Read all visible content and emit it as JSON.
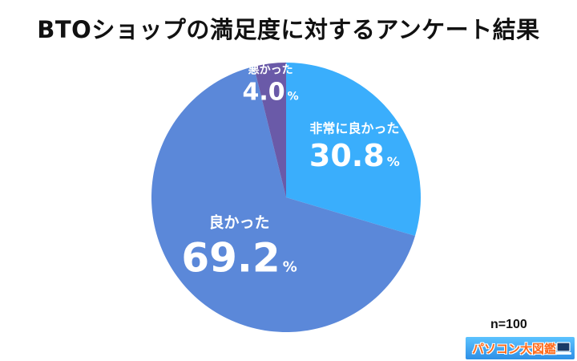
{
  "title": "BTOショップの満足度に対するアンケート結果",
  "sample_size": "n=100",
  "logo_text": "パソコン大図鑑",
  "colors": {
    "very_good": "#3aaefc",
    "good": "#5b88d9",
    "bad": "#6a5aa8"
  },
  "chart_data": {
    "type": "pie",
    "title": "BTOショップの満足度に対するアンケート結果",
    "slices": [
      {
        "label": "非常に良かった",
        "value": 30.8,
        "display": "30.8",
        "unit": "%",
        "color": "#3aaefc"
      },
      {
        "label": "良かった",
        "value": 69.2,
        "display": "69.2",
        "unit": "%",
        "color": "#5b88d9"
      },
      {
        "label": "悪かった",
        "value": 4.0,
        "display": "4.0",
        "unit": "%",
        "color": "#6a5aa8"
      }
    ],
    "start": "12 o'clock",
    "direction": "clockwise",
    "legend": "none"
  }
}
